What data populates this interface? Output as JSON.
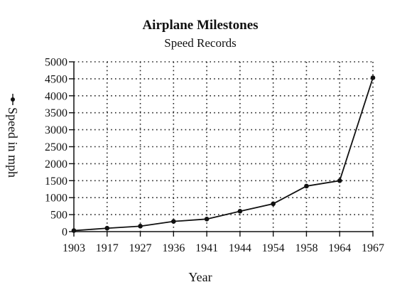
{
  "chart_data": {
    "type": "line",
    "title": "Airplane Milestones",
    "subtitle": "Speed Records",
    "xlabel": "Year",
    "ylabel": "Speed in mph",
    "legend": "left-vertical",
    "grid": true,
    "ylim": [
      0,
      5000
    ],
    "yticks": [
      "5000",
      "4500",
      "4000",
      "3500",
      "3000",
      "2500",
      "2000",
      "1500",
      "1000",
      "500",
      "0"
    ],
    "categories": [
      "1903",
      "1917",
      "1927",
      "1936",
      "1941",
      "1944",
      "1954",
      "1958",
      "1964",
      "1967"
    ],
    "series": [
      {
        "name": "Speed in mph",
        "values": [
          30,
          100,
          160,
          300,
          370,
          600,
          820,
          1340,
          1500,
          4530
        ]
      }
    ]
  }
}
